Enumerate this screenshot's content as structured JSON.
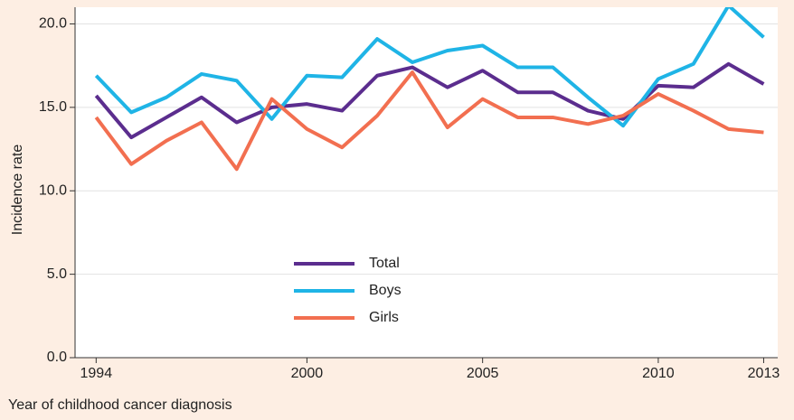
{
  "chart_data": {
    "type": "line",
    "x_label": "Year of childhood cancer diagnosis",
    "y_label": "Incidence rate",
    "x": [
      1994,
      1995,
      1996,
      1997,
      1998,
      1999,
      2000,
      2001,
      2002,
      2003,
      2004,
      2005,
      2006,
      2007,
      2008,
      2009,
      2010,
      2011,
      2012,
      2013
    ],
    "series": [
      {
        "name": "Total",
        "color": "#5b2d8e",
        "values": [
          15.7,
          13.2,
          14.4,
          15.6,
          14.1,
          15.0,
          15.2,
          14.8,
          16.9,
          17.4,
          16.2,
          17.2,
          15.9,
          15.9,
          14.8,
          14.3,
          16.3,
          16.2,
          17.6,
          16.4
        ]
      },
      {
        "name": "Boys",
        "color": "#1fb4e6",
        "values": [
          16.9,
          14.7,
          15.6,
          17.0,
          16.6,
          14.3,
          16.9,
          16.8,
          19.1,
          17.7,
          18.4,
          18.7,
          17.4,
          17.4,
          15.6,
          13.9,
          16.7,
          17.6,
          21.1,
          19.2
        ]
      },
      {
        "name": "Girls",
        "color": "#f26f50",
        "values": [
          14.4,
          11.6,
          13.0,
          14.1,
          11.3,
          15.5,
          13.7,
          12.6,
          14.5,
          17.1,
          13.8,
          15.5,
          14.4,
          14.4,
          14.0,
          14.5,
          15.8,
          14.8,
          13.7,
          13.5
        ]
      }
    ],
    "xlim": [
      1993.4,
      2013.4
    ],
    "xticks": [
      1994,
      2000,
      2005,
      2010,
      2013
    ],
    "ylim": [
      0,
      21
    ],
    "yticks": [
      {
        "value": 0,
        "label": "0.0"
      },
      {
        "value": 5,
        "label": "5.0"
      },
      {
        "value": 10,
        "label": "10.0"
      },
      {
        "value": 15,
        "label": "15.0"
      },
      {
        "value": 20,
        "label": "20.0"
      }
    ],
    "grid": true
  }
}
